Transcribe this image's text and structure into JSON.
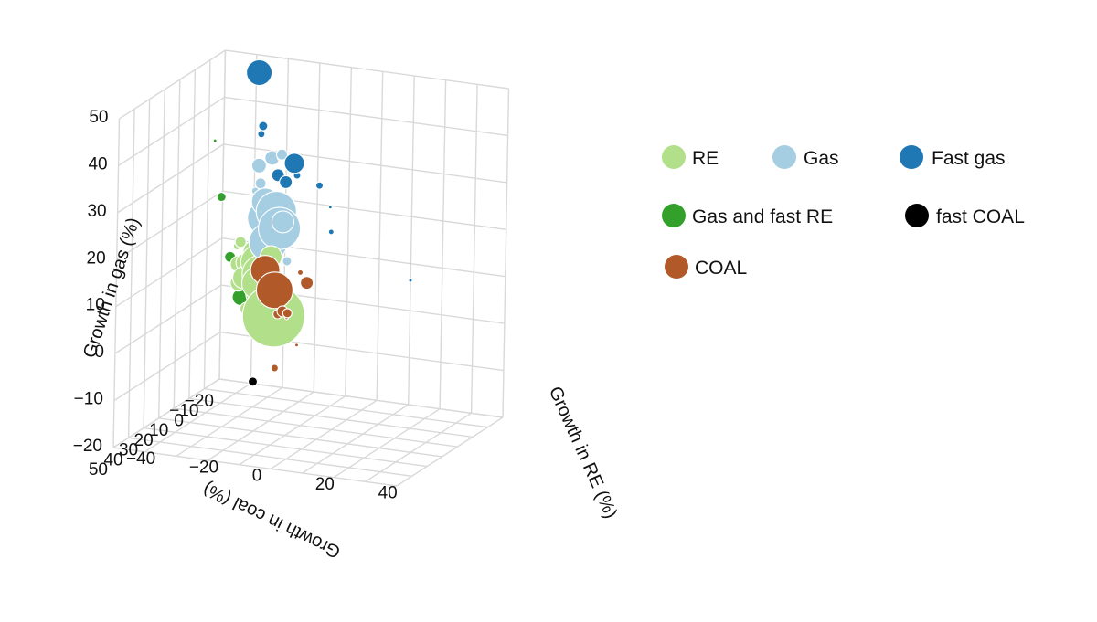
{
  "chart_data": {
    "type": "scatter",
    "title": "",
    "projection": "3d",
    "xlabel": "Growth in coal (%)",
    "ylabel": "Growth in RE (%)",
    "zlabel": "Growth in gas (%)",
    "xlim": [
      -20,
      50
    ],
    "ylim": [
      -40,
      50
    ],
    "zlim": [
      -20,
      50
    ],
    "x_ticks": [
      "−20",
      "−10",
      "0",
      "10",
      "20",
      "30",
      "40",
      "50"
    ],
    "y_ticks": [
      "−40",
      "−20",
      "0",
      "20",
      "40"
    ],
    "z_ticks": [
      "50",
      "40",
      "30",
      "20",
      "10",
      "0",
      "−10",
      "−20"
    ],
    "grid": true,
    "legend_position": "right",
    "series": [
      {
        "name": "RE",
        "color": "#b2df8a",
        "points": [
          {
            "x": 12,
            "y": -8,
            "z": 3,
            "size": 34
          },
          {
            "x": 8,
            "y": -12,
            "z": 7,
            "size": 24
          },
          {
            "x": 6,
            "y": -15,
            "z": 10,
            "size": 21
          },
          {
            "x": 4,
            "y": -17,
            "z": 12,
            "size": 19
          },
          {
            "x": 10,
            "y": -14,
            "z": 9,
            "size": 18
          },
          {
            "x": 2,
            "y": -19,
            "z": 11,
            "size": 14
          },
          {
            "x": 0,
            "y": -20,
            "z": 13,
            "size": 13
          },
          {
            "x": 3,
            "y": -22,
            "z": 8,
            "size": 12
          },
          {
            "x": 6,
            "y": -12,
            "z": 14,
            "size": 12
          },
          {
            "x": -2,
            "y": -24,
            "z": 10,
            "size": 10
          },
          {
            "x": 0,
            "y": -25,
            "z": 6,
            "size": 9
          },
          {
            "x": -4,
            "y": -27,
            "z": 9,
            "size": 9
          },
          {
            "x": 2,
            "y": -18,
            "z": 4,
            "size": 8
          },
          {
            "x": -6,
            "y": -28,
            "z": 5,
            "size": 8
          },
          {
            "x": 5,
            "y": -20,
            "z": 2,
            "size": 7
          },
          {
            "x": -3,
            "y": -26,
            "z": 14,
            "size": 6
          },
          {
            "x": 1,
            "y": -21,
            "z": 0,
            "size": 5
          },
          {
            "x": -5,
            "y": -23,
            "z": -3,
            "size": 4
          },
          {
            "x": 4,
            "y": -16,
            "z": -2,
            "size": 4
          },
          {
            "x": -7,
            "y": -29,
            "z": 12,
            "size": 4
          }
        ]
      },
      {
        "name": "Gas",
        "color": "#a6cee3",
        "points": [
          {
            "x": 5,
            "y": -10,
            "z": 20,
            "size": 23
          },
          {
            "x": 3,
            "y": -12,
            "z": 23,
            "size": 22
          },
          {
            "x": 6,
            "y": -13,
            "z": 17,
            "size": 21
          },
          {
            "x": -2,
            "y": -18,
            "z": 20,
            "size": 19
          },
          {
            "x": 0,
            "y": -17,
            "z": 24,
            "size": 15
          },
          {
            "x": 7,
            "y": -8,
            "z": 22,
            "size": 12
          },
          {
            "x": -6,
            "y": -22,
            "z": 30,
            "size": 8
          },
          {
            "x": -2,
            "y": -16,
            "z": 33,
            "size": 8
          },
          {
            "x": 2,
            "y": -11,
            "z": 35,
            "size": 6
          },
          {
            "x": -3,
            "y": -20,
            "z": 27,
            "size": 6
          },
          {
            "x": 8,
            "y": -6,
            "z": 14,
            "size": 5
          },
          {
            "x": -8,
            "y": -24,
            "z": 24,
            "size": 4
          }
        ]
      },
      {
        "name": "Fast gas",
        "color": "#1f78b4",
        "points": [
          {
            "x": -5,
            "y": -22,
            "z": 50,
            "size": 14
          },
          {
            "x": 0,
            "y": -8,
            "z": 33,
            "size": 11
          },
          {
            "x": -3,
            "y": -12,
            "z": 28,
            "size": 7
          },
          {
            "x": -4,
            "y": -15,
            "z": 29,
            "size": 7
          },
          {
            "x": -4,
            "y": -20,
            "z": 39,
            "size": 5
          },
          {
            "x": -5,
            "y": -21,
            "z": 37,
            "size": 4
          },
          {
            "x": -2,
            "y": -8,
            "z": 30,
            "size": 4
          },
          {
            "x": 4,
            "y": 2,
            "z": 30,
            "size": 4
          },
          {
            "x": 2,
            "y": 5,
            "z": 20,
            "size": 3
          },
          {
            "x": 5,
            "y": 6,
            "z": 26,
            "size": 2
          },
          {
            "x": -3,
            "y": -14,
            "z": 33,
            "size": 3
          },
          {
            "x": 18,
            "y": 38,
            "z": 16,
            "size": 2
          }
        ]
      },
      {
        "name": "Gas and fast RE",
        "color": "#33a02c",
        "points": [
          {
            "x": -12,
            "y": -30,
            "z": 0,
            "size": 9
          },
          {
            "x": -10,
            "y": -26,
            "z": -5,
            "size": 5
          },
          {
            "x": -13,
            "y": -34,
            "z": 8,
            "size": 6
          },
          {
            "x": -15,
            "y": -38,
            "z": 20,
            "size": 5
          },
          {
            "x": -10,
            "y": -38,
            "z": 33,
            "size": 2
          }
        ]
      },
      {
        "name": "fast COAL",
        "color": "#000000",
        "points": [
          {
            "x": 42,
            "y": 0,
            "z": -4,
            "size": 5
          }
        ]
      },
      {
        "name": "COAL",
        "color": "#b15928",
        "points": [
          {
            "x": 18,
            "y": -5,
            "z": 10,
            "size": 20
          },
          {
            "x": 14,
            "y": -10,
            "z": 13,
            "size": 16
          },
          {
            "x": 23,
            "y": 0,
            "z": 7,
            "size": 6
          },
          {
            "x": 24,
            "y": 2,
            "z": 7,
            "size": 5
          },
          {
            "x": 22,
            "y": -2,
            "z": 6,
            "size": 5
          },
          {
            "x": 24,
            "y": 8,
            "z": 14,
            "size": 7
          },
          {
            "x": 20,
            "y": 4,
            "z": 15,
            "size": 3
          },
          {
            "x": 36,
            "y": 4,
            "z": -2,
            "size": 4
          },
          {
            "x": 30,
            "y": 8,
            "z": 2,
            "size": 2
          },
          {
            "x": 16,
            "y": -2,
            "z": 4,
            "size": 2
          }
        ]
      }
    ]
  },
  "legend": {
    "items": [
      {
        "label": "RE",
        "color": "#b2df8a"
      },
      {
        "label": "Gas",
        "color": "#a6cee3"
      },
      {
        "label": "Fast gas",
        "color": "#1f78b4"
      },
      {
        "label": "Gas and fast RE",
        "color": "#33a02c"
      },
      {
        "label": "fast COAL",
        "color": "#000000"
      },
      {
        "label": "COAL",
        "color": "#b15928"
      }
    ]
  }
}
